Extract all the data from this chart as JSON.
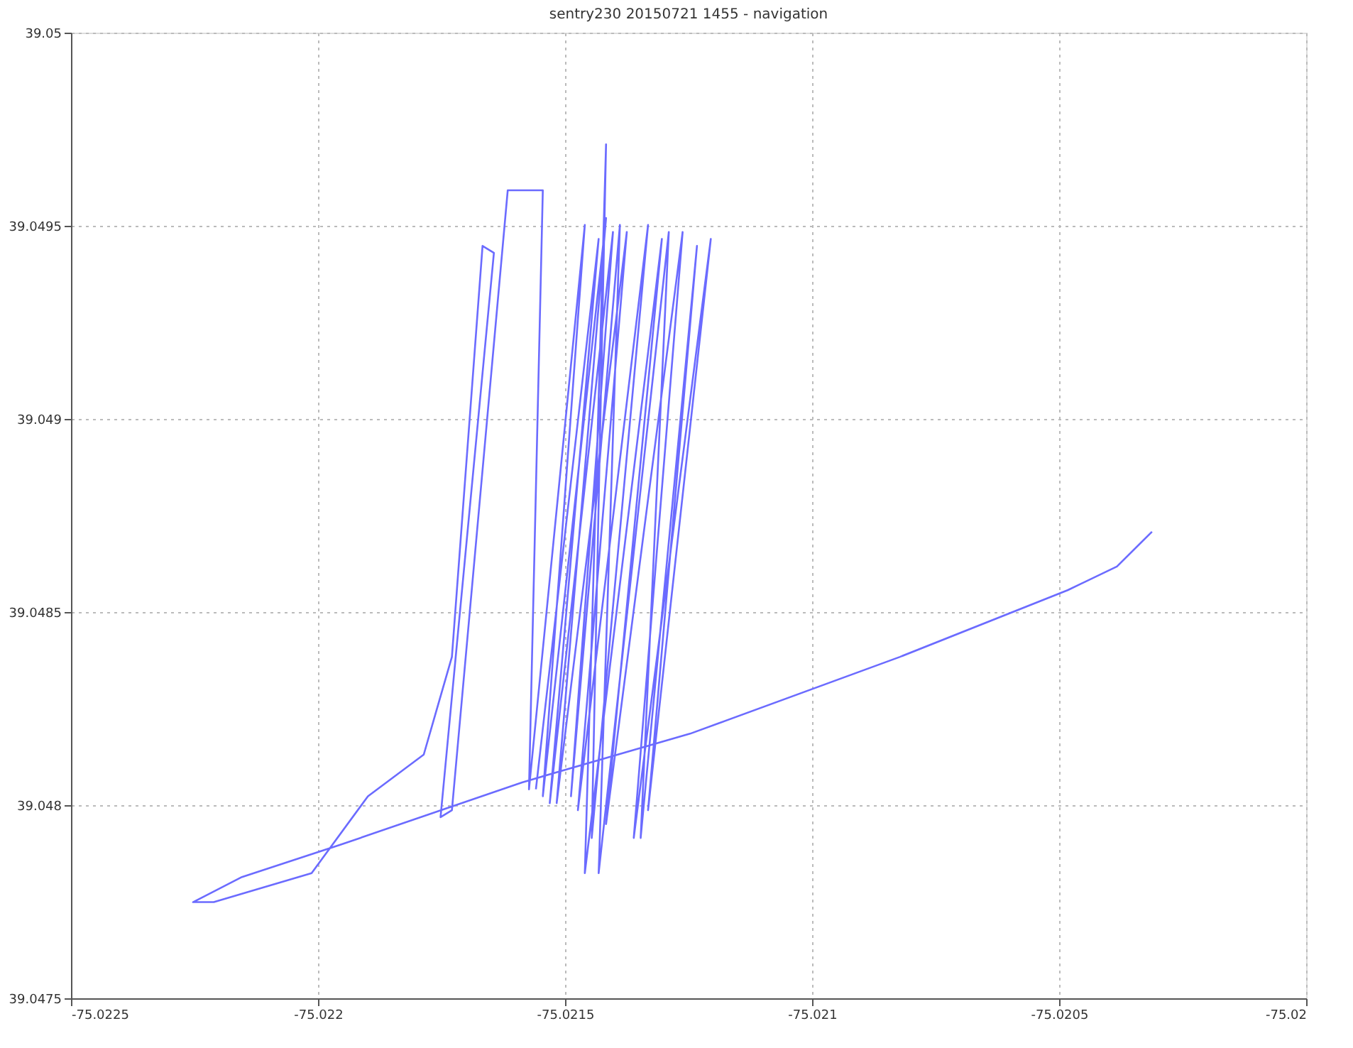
{
  "chart_data": {
    "type": "line",
    "title": "sentry230 20150721 1455 - navigation",
    "xlim": [
      -75.0225,
      -75.02
    ],
    "xticks": [
      -75.0225,
      -75.022,
      -75.0215,
      -75.021,
      -75.0205,
      -75.02
    ],
    "ylim": [
      39.0475,
      39.05
    ],
    "yticks": [
      39.0475,
      39.048,
      39.0485,
      39.049,
      39.0495,
      39.05
    ],
    "grid": true,
    "legend": false,
    "marker": "none",
    "line_style": "solid",
    "series": [
      {
        "color": "#6b6bff",
        "x": [
          -75.020312,
          -75.020383,
          -75.020482,
          -75.020822,
          -75.021247,
          -75.021587,
          -75.021956,
          -75.022154,
          -75.022253,
          -75.022211,
          -75.022013,
          -75.021899,
          -75.021786,
          -75.021729,
          -75.021667,
          -75.021644,
          -75.021752,
          -75.021729,
          -75.021616,
          -75.021545,
          -75.021573,
          -75.02146,
          -75.021545,
          -75.021417,
          -75.021517,
          -75.021375,
          -75.021474,
          -75.021332,
          -75.021446,
          -75.021417,
          -75.02146,
          -75.021304,
          -75.021417,
          -75.021262,
          -75.021361,
          -75.021205,
          -75.021332,
          -75.021233,
          -75.021347,
          -75.02129,
          -75.021432,
          -75.021389,
          -75.021488,
          -75.021403,
          -75.021531,
          -75.021432,
          -75.021559
        ],
        "values": [
          39.048708,
          39.048618,
          39.048557,
          39.048384,
          39.048185,
          39.048059,
          39.047897,
          39.047814,
          39.047749,
          39.047749,
          39.047824,
          39.048023,
          39.048131,
          39.048384,
          39.049448,
          39.04943,
          39.047969,
          39.047987,
          39.049592,
          39.049592,
          39.048041,
          39.049502,
          39.048023,
          39.04952,
          39.048005,
          39.049484,
          39.047987,
          39.049502,
          39.047915,
          39.049711,
          39.047824,
          39.049466,
          39.047951,
          39.049484,
          39.047915,
          39.049466,
          39.047987,
          39.049448,
          39.047915,
          39.049484,
          39.047824,
          39.049502,
          39.048023,
          39.049484,
          39.048005,
          39.049466,
          39.048041
        ]
      }
    ]
  }
}
